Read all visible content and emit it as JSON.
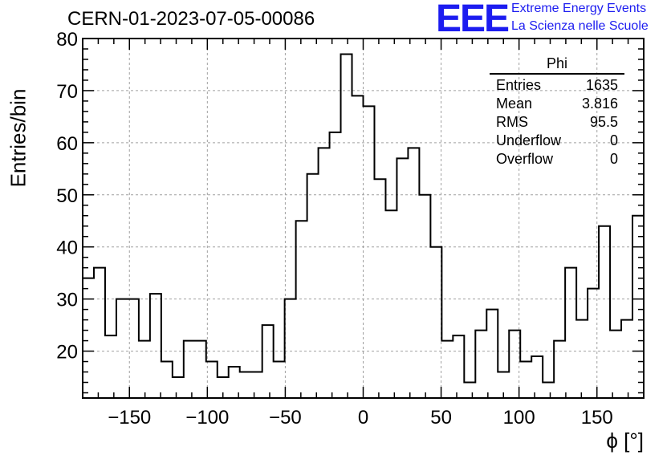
{
  "header": {
    "title": "CERN-01-2023-07-05-00086",
    "logo_text": "EEE",
    "logo_line1": "Extreme Energy Events",
    "logo_line2": "La Scienza nelle Scuole",
    "brand_color": "#1c1cf0"
  },
  "stats": {
    "name": "Phi",
    "rows": [
      {
        "label": "Entries",
        "value": "1635"
      },
      {
        "label": "Mean",
        "value": "3.816"
      },
      {
        "label": "RMS",
        "value": "95.5"
      },
      {
        "label": "Underflow",
        "value": "0"
      },
      {
        "label": "Overflow",
        "value": "0"
      }
    ]
  },
  "chart_data": {
    "type": "bar",
    "style": "step-histogram",
    "xlabel": "ϕ [°]",
    "ylabel": "Entries/bin",
    "xlim": [
      -180,
      180
    ],
    "ylim": [
      11,
      80
    ],
    "x_ticks": [
      -150,
      -100,
      -50,
      0,
      50,
      100,
      150
    ],
    "x_tick_labels": [
      "−150",
      "−100",
      "−50",
      "0",
      "50",
      "100",
      "150"
    ],
    "y_ticks": [
      20,
      30,
      40,
      50,
      60,
      70,
      80
    ],
    "y_tick_labels": [
      "20",
      "30",
      "40",
      "50",
      "60",
      "70",
      "80"
    ],
    "grid": true,
    "bin_width": 7.2,
    "values": [
      34,
      36,
      23,
      30,
      30,
      22,
      31,
      18,
      15,
      22,
      22,
      18,
      15,
      17,
      16,
      16,
      25,
      18,
      30,
      45,
      54,
      59,
      62,
      77,
      69,
      67,
      53,
      47,
      57,
      59,
      50,
      40,
      22,
      23,
      14,
      24,
      28,
      16,
      24,
      18,
      19,
      14,
      22,
      36,
      26,
      32,
      44,
      24,
      26,
      46
    ]
  }
}
